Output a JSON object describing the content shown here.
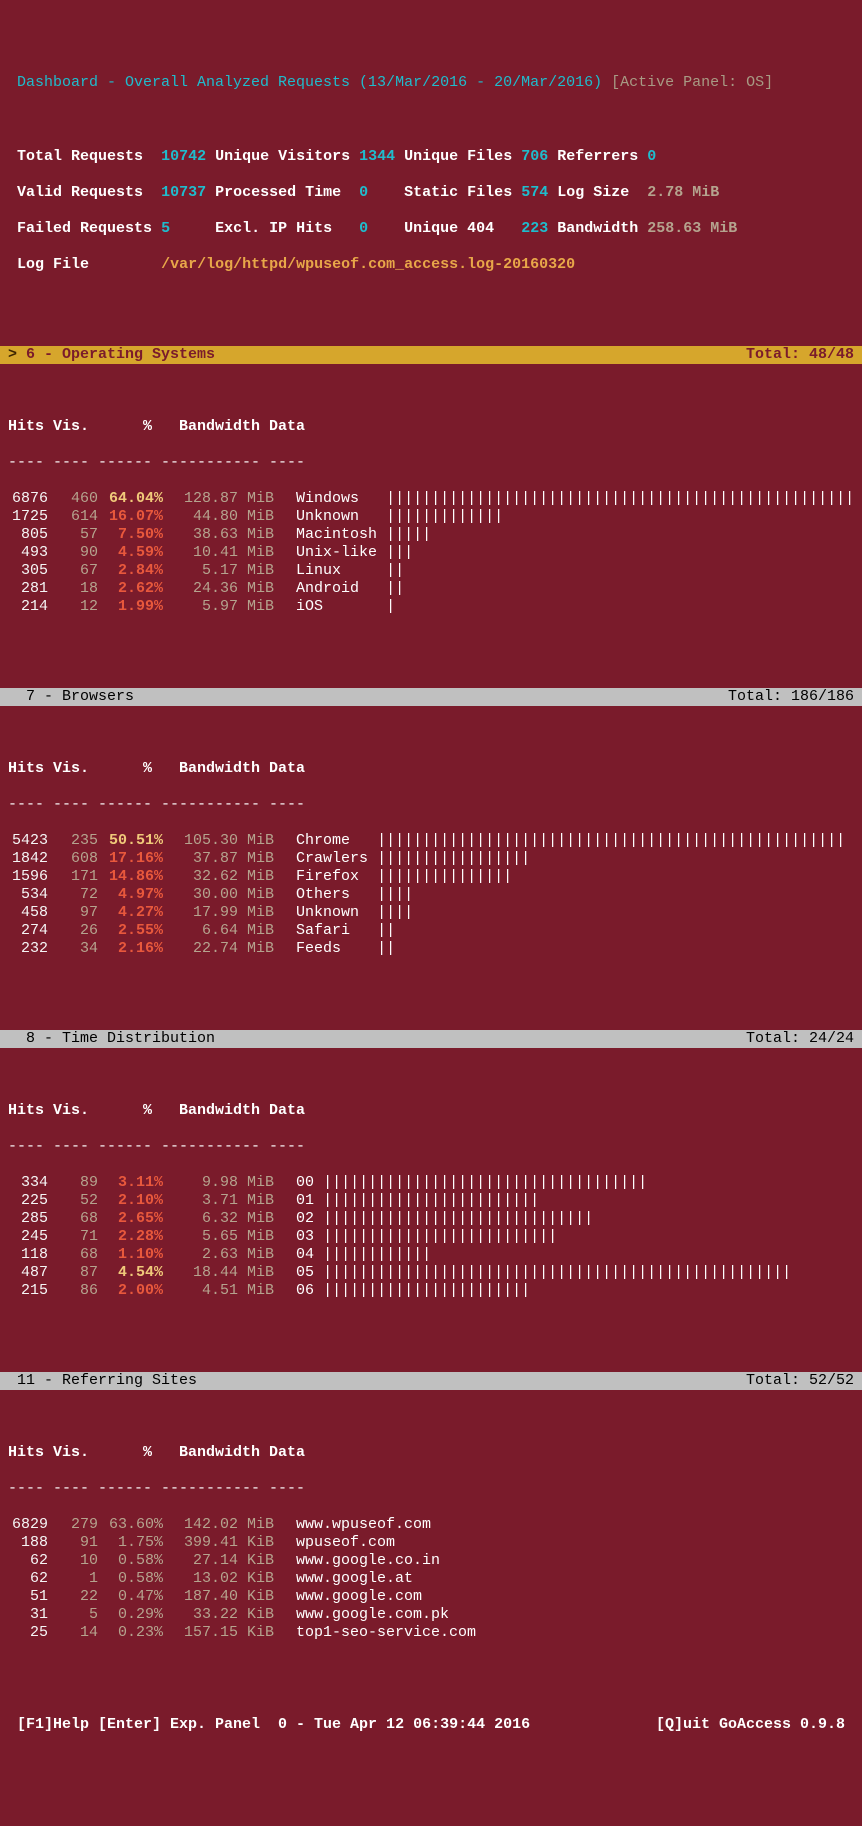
{
  "header": {
    "title": " Dashboard - Overall Analyzed Requests (13/Mar/2016 - 20/Mar/2016) ",
    "active_label": "[Active Panel: OS]"
  },
  "summary": {
    "total_requests_label": "Total Requests ",
    "total_requests": "10742",
    "unique_visitors_label": "Unique Visitors",
    "unique_visitors": "1344",
    "unique_files_label": "Unique Files",
    "unique_files": "706",
    "referrers_label": "Referrers",
    "referrers": "0",
    "valid_requests_label": "Valid Requests ",
    "valid_requests": "10737",
    "processed_time_label": "Processed Time ",
    "processed_time": "0   ",
    "static_files_label": "Static Files",
    "static_files": "574",
    "log_size_label": "Log Size ",
    "log_size": "2.78 MiB",
    "failed_requests_label": "Failed Requests",
    "failed_requests": "5    ",
    "excl_ip_hits_label": "Excl. IP Hits  ",
    "excl_ip_hits": "0   ",
    "unique_404_label": "Unique 404  ",
    "unique_404": "223",
    "bandwidth_label": "Bandwidth",
    "bandwidth": "258.63 MiB",
    "log_file_label": "Log File       ",
    "log_file": "/var/log/httpd/wpuseof.com_access.log-20160320"
  },
  "panels": {
    "os": {
      "marker": "> ",
      "title": "6 - Operating Systems",
      "total": "Total: 48/48",
      "active": true,
      "columns": "Hits Vis.      %   Bandwidth Data",
      "dashes": "---- ---- ------ ----------- ----",
      "rows": [
        {
          "hits": "6876",
          "vis": "460",
          "pct": "64.04%",
          "bw": "128.87",
          "unit": "MiB",
          "data": "Windows",
          "bar": "||||||||||||||||||||||||||||||||||||||||||||||||||||",
          "hl": true
        },
        {
          "hits": "1725",
          "vis": "614",
          "pct": "16.07%",
          "bw": "44.80",
          "unit": "MiB",
          "data": "Unknown",
          "bar": "|||||||||||||"
        },
        {
          "hits": "805",
          "vis": "57",
          "pct": "7.50%",
          "bw": "38.63",
          "unit": "MiB",
          "data": "Macintosh",
          "bar": "|||||"
        },
        {
          "hits": "493",
          "vis": "90",
          "pct": "4.59%",
          "bw": "10.41",
          "unit": "MiB",
          "data": "Unix-like",
          "bar": "|||"
        },
        {
          "hits": "305",
          "vis": "67",
          "pct": "2.84%",
          "bw": "5.17",
          "unit": "MiB",
          "data": "Linux",
          "bar": "||"
        },
        {
          "hits": "281",
          "vis": "18",
          "pct": "2.62%",
          "bw": "24.36",
          "unit": "MiB",
          "data": "Android",
          "bar": "||"
        },
        {
          "hits": "214",
          "vis": "12",
          "pct": "1.99%",
          "bw": "5.97",
          "unit": "MiB",
          "data": "iOS",
          "bar": "|"
        }
      ]
    },
    "browsers": {
      "title": "  7 - Browsers",
      "total": "Total: 186/186",
      "columns": "Hits Vis.      %   Bandwidth Data",
      "dashes": "---- ---- ------ ----------- ----",
      "rows": [
        {
          "hits": "5423",
          "vis": "235",
          "pct": "50.51%",
          "bw": "105.30",
          "unit": "MiB",
          "data": "Chrome",
          "bar": "||||||||||||||||||||||||||||||||||||||||||||||||||||",
          "hl": true
        },
        {
          "hits": "1842",
          "vis": "608",
          "pct": "17.16%",
          "bw": "37.87",
          "unit": "MiB",
          "data": "Crawlers",
          "bar": "|||||||||||||||||"
        },
        {
          "hits": "1596",
          "vis": "171",
          "pct": "14.86%",
          "bw": "32.62",
          "unit": "MiB",
          "data": "Firefox",
          "bar": "|||||||||||||||"
        },
        {
          "hits": "534",
          "vis": "72",
          "pct": "4.97%",
          "bw": "30.00",
          "unit": "MiB",
          "data": "Others",
          "bar": "||||"
        },
        {
          "hits": "458",
          "vis": "97",
          "pct": "4.27%",
          "bw": "17.99",
          "unit": "MiB",
          "data": "Unknown",
          "bar": "||||"
        },
        {
          "hits": "274",
          "vis": "26",
          "pct": "2.55%",
          "bw": "6.64",
          "unit": "MiB",
          "data": "Safari",
          "bar": "||"
        },
        {
          "hits": "232",
          "vis": "34",
          "pct": "2.16%",
          "bw": "22.74",
          "unit": "MiB",
          "data": "Feeds",
          "bar": "||"
        }
      ]
    },
    "time": {
      "title": "  8 - Time Distribution",
      "total": "Total: 24/24",
      "columns": "Hits Vis.      %   Bandwidth Data",
      "dashes": "---- ---- ------ ----------- ----",
      "rows": [
        {
          "hits": "334",
          "vis": "89",
          "pct": "3.11%",
          "bw": "9.98",
          "unit": "MiB",
          "data": "00",
          "bar": "||||||||||||||||||||||||||||||||||||"
        },
        {
          "hits": "225",
          "vis": "52",
          "pct": "2.10%",
          "bw": "3.71",
          "unit": "MiB",
          "data": "01",
          "bar": "||||||||||||||||||||||||"
        },
        {
          "hits": "285",
          "vis": "68",
          "pct": "2.65%",
          "bw": "6.32",
          "unit": "MiB",
          "data": "02",
          "bar": "||||||||||||||||||||||||||||||"
        },
        {
          "hits": "245",
          "vis": "71",
          "pct": "2.28%",
          "bw": "5.65",
          "unit": "MiB",
          "data": "03",
          "bar": "||||||||||||||||||||||||||"
        },
        {
          "hits": "118",
          "vis": "68",
          "pct": "1.10%",
          "bw": "2.63",
          "unit": "MiB",
          "data": "04",
          "bar": "||||||||||||"
        },
        {
          "hits": "487",
          "vis": "87",
          "pct": "4.54%",
          "bw": "18.44",
          "unit": "MiB",
          "data": "05",
          "bar": "||||||||||||||||||||||||||||||||||||||||||||||||||||",
          "hl": true
        },
        {
          "hits": "215",
          "vis": "86",
          "pct": "2.00%",
          "bw": "4.51",
          "unit": "MiB",
          "data": "06",
          "bar": "|||||||||||||||||||||||"
        }
      ]
    },
    "referring": {
      "title": " 11 - Referring Sites",
      "total": "Total: 52/52",
      "columns": "Hits Vis.      %   Bandwidth Data",
      "dashes": "---- ---- ------ ----------- ----",
      "rows": [
        {
          "hits": "6829",
          "vis": "279",
          "pct": "63.60%",
          "bw": "142.02",
          "unit": "MiB",
          "data": "www.wpuseof.com",
          "grey": true
        },
        {
          "hits": "188",
          "vis": "91",
          "pct": "1.75%",
          "bw": "399.41",
          "unit": "KiB",
          "data": "wpuseof.com",
          "grey": true
        },
        {
          "hits": "62",
          "vis": "10",
          "pct": "0.58%",
          "bw": "27.14",
          "unit": "KiB",
          "data": "www.google.co.in",
          "grey": true
        },
        {
          "hits": "62",
          "vis": "1",
          "pct": "0.58%",
          "bw": "13.02",
          "unit": "KiB",
          "data": "www.google.at",
          "grey": true
        },
        {
          "hits": "51",
          "vis": "22",
          "pct": "0.47%",
          "bw": "187.40",
          "unit": "KiB",
          "data": "www.google.com",
          "grey": true
        },
        {
          "hits": "31",
          "vis": "5",
          "pct": "0.29%",
          "bw": "33.22",
          "unit": "KiB",
          "data": "www.google.com.pk",
          "grey": true
        },
        {
          "hits": "25",
          "vis": "14",
          "pct": "0.23%",
          "bw": "157.15",
          "unit": "KiB",
          "data": "top1-seo-service.com",
          "grey": true
        }
      ]
    }
  },
  "footer": {
    "left": " [F1]Help [Enter] Exp. Panel  0 - Tue Apr 12 06:39:44 2016",
    "right": "[Q]uit GoAccess 0.9.8 "
  }
}
